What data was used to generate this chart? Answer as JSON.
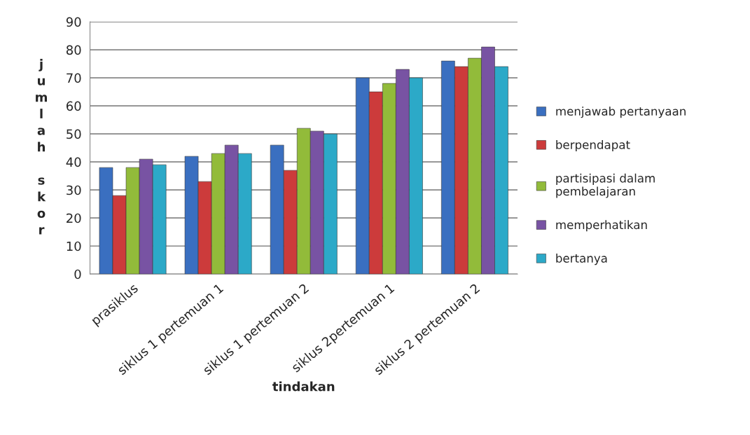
{
  "chart_data": {
    "type": "bar",
    "xlabel": "tindakan",
    "ylabel": "jumlah skor",
    "categories": [
      "prasiklus",
      "siklus 1 pertemuan 1",
      "siklus 1 pertemuan 2",
      "siklus 2pertemuan 1",
      "siklus 2 pertemuan 2"
    ],
    "series": [
      {
        "name": "menjawab pertanyaan",
        "color": "#3a6fc0",
        "values": [
          38,
          42,
          46,
          70,
          76
        ]
      },
      {
        "name": "berpendapat",
        "color": "#cc3b3b",
        "values": [
          28,
          33,
          37,
          65,
          74
        ]
      },
      {
        "name": "partisipasi dalam pembelajaran",
        "color": "#92bb3a",
        "values": [
          38,
          43,
          52,
          68,
          77
        ]
      },
      {
        "name": "memperhatikan",
        "color": "#7853a3",
        "values": [
          41,
          46,
          51,
          73,
          81
        ]
      },
      {
        "name": "bertanya",
        "color": "#2ca9c8",
        "values": [
          39,
          43,
          50,
          70,
          74
        ]
      }
    ],
    "ylim": [
      0,
      90
    ],
    "yticks": [
      0,
      10,
      20,
      30,
      40,
      50,
      60,
      70,
      80,
      90
    ],
    "grid": "y",
    "legend": "right"
  }
}
